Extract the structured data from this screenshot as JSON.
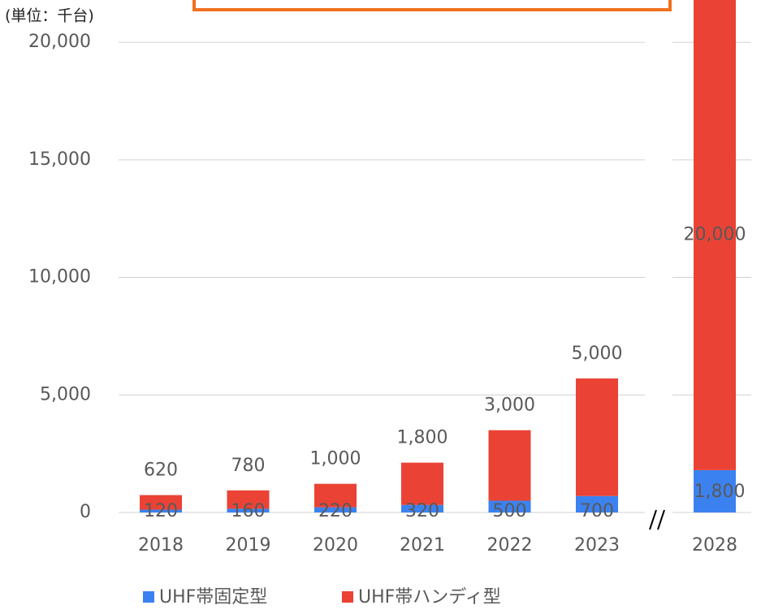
{
  "chart_data": {
    "type": "stacked_bar",
    "y_label": "(単位：千台)",
    "categories": [
      "2018",
      "2019",
      "2020",
      "2021",
      "2022",
      "2023",
      "2028"
    ],
    "series": [
      {
        "name": "UHF帯固定型",
        "color": "#3b82f0",
        "values": [
          120,
          160,
          220,
          320,
          500,
          700,
          1800
        ],
        "value_labels": [
          "120",
          "160",
          "220",
          "320",
          "500",
          "700",
          "1,800"
        ]
      },
      {
        "name": "UHF帯ハンディ型",
        "color": "#ea4335",
        "values": [
          620,
          780,
          1000,
          1800,
          3000,
          5000,
          20000
        ],
        "value_labels": [
          "620",
          "780",
          "1,000",
          "1,800",
          "3,000",
          "5,000",
          "20,000"
        ]
      }
    ],
    "ylim": [
      0,
      21800
    ],
    "yticks": [
      0,
      {
        "value": 5000,
        "label": "5,000"
      },
      {
        "value": 10000,
        "label": "10,000"
      },
      {
        "value": 15000,
        "label": "15,000"
      },
      {
        "value": 20000,
        "label": "20,000"
      }
    ],
    "grid": true,
    "legend": "bottom"
  }
}
